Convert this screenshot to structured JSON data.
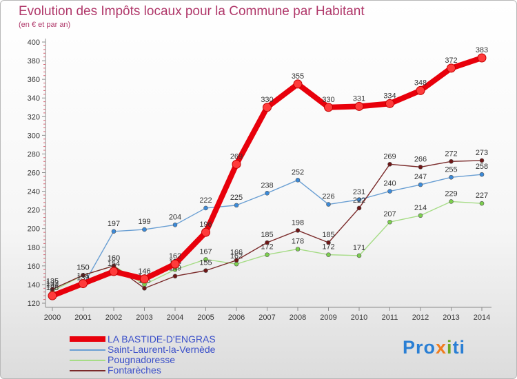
{
  "header": {
    "title": "Evolution des Impôts locaux pour la Commune par Habitant",
    "subtitle": "(en € et par an)"
  },
  "brand": {
    "text": "Proxiti"
  },
  "chart_data": {
    "type": "line",
    "title": "Evolution des Impôts locaux pour la Commune par Habitant",
    "subtitle": "(en € et par an)",
    "xlabel": "",
    "ylabel": "",
    "ylim": [
      120,
      400
    ],
    "ytick_step": 20,
    "grid": false,
    "legend_position": "bottom",
    "categories": [
      "2000",
      "2001",
      "2002",
      "2003",
      "2004",
      "2005",
      "2006",
      "2007",
      "2008",
      "2009",
      "2010",
      "2011",
      "2012",
      "2013",
      "2014"
    ],
    "series": [
      {
        "name": "LA BASTIDE-D'ENGRAS",
        "color": "#e8000b",
        "marker_color": "#ff3b3b",
        "width": "thick",
        "values": [
          128,
          141,
          154,
          146,
          162,
          196,
          269,
          330,
          355,
          330,
          331,
          334,
          348,
          372,
          383
        ]
      },
      {
        "name": "Saint-Laurent-la-Vernède",
        "color": "#6a9fd3",
        "marker_color": "#3b8ad9",
        "width": "thin",
        "values": [
          131,
          139,
          197,
          199,
          204,
          222,
          225,
          238,
          252,
          226,
          231,
          240,
          247,
          255,
          258
        ]
      },
      {
        "name": "Pougnadoresse",
        "color": "#a6dc86",
        "marker_color": "#7ccf4e",
        "width": "thin",
        "values": [
          133,
          150,
          160,
          140,
          156,
          167,
          162,
          172,
          178,
          172,
          171,
          207,
          214,
          229,
          227
        ]
      },
      {
        "name": "Fontarèches",
        "color": "#7a2a2a",
        "marker_color": "#6e1616",
        "width": "thin",
        "values": [
          135,
          150,
          160,
          136,
          149,
          155,
          166,
          185,
          198,
          185,
          222,
          269,
          266,
          272,
          273
        ]
      }
    ]
  }
}
